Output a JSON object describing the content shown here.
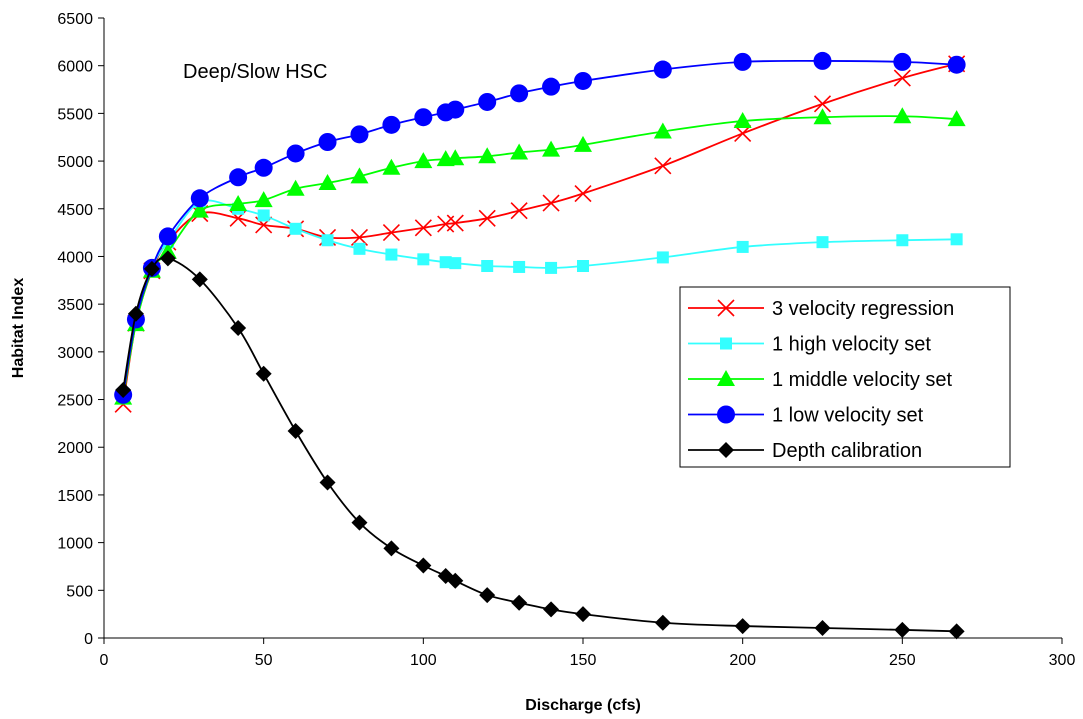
{
  "chart_data": {
    "type": "line",
    "title": "",
    "annotation": "Deep/Slow HSC",
    "xlabel": "Discharge (cfs)",
    "ylabel": "Habitat Index",
    "xlim": [
      0,
      300
    ],
    "ylim": [
      0,
      6500
    ],
    "xticks": [
      0,
      50,
      100,
      150,
      200,
      250,
      300
    ],
    "yticks": [
      0,
      500,
      1000,
      1500,
      2000,
      2500,
      3000,
      3500,
      4000,
      4500,
      5000,
      5500,
      6000,
      6500
    ],
    "grid": false,
    "legend_position": "right",
    "series": [
      {
        "name": "3 velocity regression",
        "color": "#ff0000",
        "marker": "x",
        "points": [
          [
            6,
            2450
          ],
          [
            10,
            3300
          ],
          [
            15,
            3850
          ],
          [
            20,
            4150
          ],
          [
            30,
            4450
          ],
          [
            42,
            4400
          ],
          [
            50,
            4330
          ],
          [
            60,
            4290
          ],
          [
            70,
            4200
          ],
          [
            80,
            4200
          ],
          [
            90,
            4250
          ],
          [
            100,
            4300
          ],
          [
            107,
            4340
          ],
          [
            110,
            4350
          ],
          [
            120,
            4400
          ],
          [
            130,
            4480
          ],
          [
            140,
            4560
          ],
          [
            150,
            4660
          ],
          [
            175,
            4950
          ],
          [
            200,
            5290
          ],
          [
            225,
            5600
          ],
          [
            250,
            5870
          ],
          [
            267,
            6020
          ]
        ]
      },
      {
        "name": "1 high velocity set",
        "color": "#33ffff",
        "marker": "square",
        "points": [
          [
            6,
            2530
          ],
          [
            10,
            3320
          ],
          [
            15,
            3880
          ],
          [
            20,
            4150
          ],
          [
            30,
            4570
          ],
          [
            42,
            4500
          ],
          [
            50,
            4430
          ],
          [
            60,
            4290
          ],
          [
            70,
            4170
          ],
          [
            80,
            4080
          ],
          [
            90,
            4020
          ],
          [
            100,
            3970
          ],
          [
            107,
            3940
          ],
          [
            110,
            3930
          ],
          [
            120,
            3900
          ],
          [
            130,
            3890
          ],
          [
            140,
            3880
          ],
          [
            150,
            3900
          ],
          [
            175,
            3990
          ],
          [
            200,
            4100
          ],
          [
            225,
            4150
          ],
          [
            250,
            4170
          ],
          [
            267,
            4180
          ]
        ]
      },
      {
        "name": "1 middle velocity set",
        "color": "#00ff00",
        "marker": "triangle",
        "points": [
          [
            6,
            2520
          ],
          [
            10,
            3290
          ],
          [
            15,
            3850
          ],
          [
            20,
            4050
          ],
          [
            30,
            4480
          ],
          [
            42,
            4550
          ],
          [
            50,
            4590
          ],
          [
            60,
            4710
          ],
          [
            70,
            4770
          ],
          [
            80,
            4840
          ],
          [
            90,
            4930
          ],
          [
            100,
            5000
          ],
          [
            107,
            5020
          ],
          [
            110,
            5030
          ],
          [
            120,
            5050
          ],
          [
            130,
            5090
          ],
          [
            140,
            5120
          ],
          [
            150,
            5170
          ],
          [
            175,
            5310
          ],
          [
            200,
            5420
          ],
          [
            225,
            5460
          ],
          [
            250,
            5470
          ],
          [
            267,
            5440
          ]
        ]
      },
      {
        "name": "1 low velocity set",
        "color": "#0000ff",
        "marker": "circle",
        "points": [
          [
            6,
            2550
          ],
          [
            10,
            3340
          ],
          [
            15,
            3880
          ],
          [
            20,
            4210
          ],
          [
            30,
            4610
          ],
          [
            42,
            4830
          ],
          [
            50,
            4930
          ],
          [
            60,
            5080
          ],
          [
            70,
            5200
          ],
          [
            80,
            5280
          ],
          [
            90,
            5380
          ],
          [
            100,
            5460
          ],
          [
            107,
            5510
          ],
          [
            110,
            5540
          ],
          [
            120,
            5620
          ],
          [
            130,
            5710
          ],
          [
            140,
            5780
          ],
          [
            150,
            5840
          ],
          [
            175,
            5960
          ],
          [
            200,
            6040
          ],
          [
            225,
            6050
          ],
          [
            250,
            6040
          ],
          [
            267,
            6010
          ]
        ]
      },
      {
        "name": "Depth calibration",
        "color": "#000000",
        "marker": "diamond",
        "points": [
          [
            6,
            2600
          ],
          [
            10,
            3400
          ],
          [
            15,
            3870
          ],
          [
            20,
            3980
          ],
          [
            30,
            3760
          ],
          [
            42,
            3250
          ],
          [
            50,
            2770
          ],
          [
            60,
            2170
          ],
          [
            70,
            1630
          ],
          [
            80,
            1210
          ],
          [
            90,
            940
          ],
          [
            100,
            760
          ],
          [
            107,
            650
          ],
          [
            110,
            600
          ],
          [
            120,
            450
          ],
          [
            130,
            370
          ],
          [
            140,
            300
          ],
          [
            150,
            250
          ],
          [
            175,
            160
          ],
          [
            200,
            125
          ],
          [
            225,
            105
          ],
          [
            250,
            85
          ],
          [
            267,
            70
          ]
        ]
      }
    ]
  }
}
